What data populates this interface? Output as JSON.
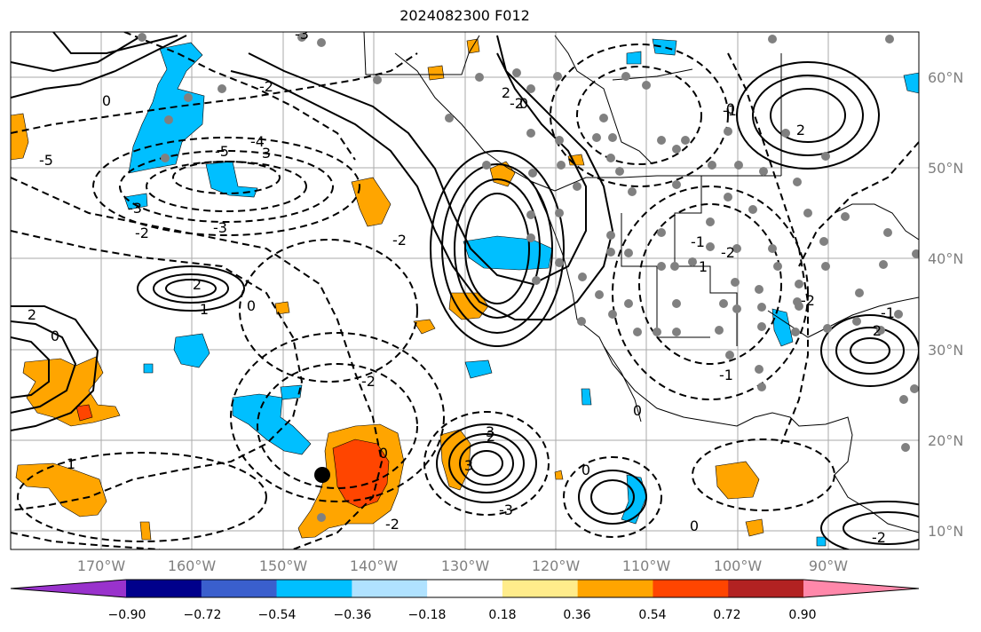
{
  "title": "2024082300 F012",
  "lat_labels": [
    "60°N",
    "50°N",
    "40°N",
    "30°N",
    "20°N",
    "10°N"
  ],
  "lon_labels": [
    "170°W",
    "160°W",
    "150°W",
    "140°W",
    "130°W",
    "120°W",
    "110°W",
    "100°W",
    "90°W"
  ],
  "colorbar": {
    "tick_labels": [
      "−0.90",
      "−0.72",
      "−0.54",
      "−0.36",
      "−0.18",
      "0.18",
      "0.36",
      "0.54",
      "0.72",
      "0.90"
    ],
    "colors": [
      "#9932cc",
      "#00008b",
      "#3a5fcd",
      "#00bfff",
      "#b0e2ff",
      "#ffffff",
      "#ffec8b",
      "#ffa500",
      "#ff4500",
      "#b22222",
      "#ff88aa"
    ]
  },
  "contour_labels": [
    "-2",
    "-5",
    "-3",
    "-4",
    "-5",
    "-3",
    "-2",
    "-2",
    "2",
    "1",
    "0",
    "0",
    "2",
    "2",
    "3",
    "-2",
    "0",
    "-2",
    "-3",
    "-2",
    "3",
    "2",
    "3",
    "2",
    "-1",
    "0",
    "-1",
    "1",
    "-2",
    "-1",
    "-2",
    "0",
    "-3",
    "2",
    "0",
    "0",
    "-1",
    "-2",
    "0",
    "0",
    "1"
  ],
  "highlight_point": {
    "lon": -145.5,
    "lat": 16.3
  }
}
